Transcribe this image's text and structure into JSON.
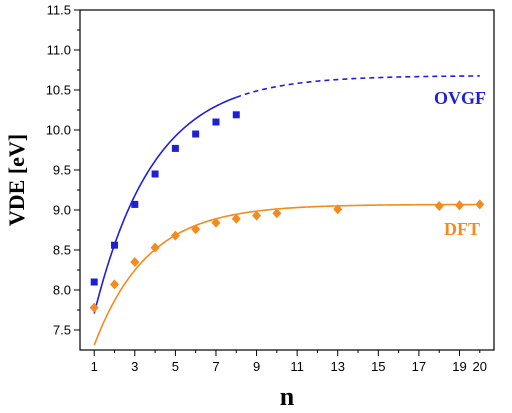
{
  "chart_data": {
    "type": "scatter",
    "title": "",
    "xlabel": "n",
    "ylabel": "VDE [eV]",
    "xlim": [
      0.3,
      20.7
    ],
    "ylim": [
      7.25,
      11.5
    ],
    "x_ticks_major": [
      1,
      3,
      5,
      7,
      9,
      11,
      13,
      15,
      17,
      19
    ],
    "x_ticks_minor": [
      2,
      4,
      6,
      8,
      10,
      12,
      14,
      16,
      18,
      20
    ],
    "x_tick_labels": [
      "1",
      "3",
      "5",
      "7",
      "9",
      "11",
      "13",
      "15",
      "17",
      "19",
      "20"
    ],
    "x_tick_label_values": [
      1,
      3,
      5,
      7,
      9,
      11,
      13,
      15,
      17,
      19,
      20
    ],
    "y_ticks": [
      7.5,
      8.0,
      8.5,
      9.0,
      9.5,
      10.0,
      10.5,
      11.0,
      11.5
    ],
    "y_tick_labels": [
      "7.5",
      "8.0",
      "8.5",
      "9.0",
      "9.5",
      "10.0",
      "10.5",
      "11.0",
      "11.5"
    ],
    "grid": false,
    "series": [
      {
        "name": "OVGF",
        "color": "#1f1fd6",
        "marker": "square",
        "x": [
          1,
          2,
          3,
          4,
          5,
          6,
          7,
          8
        ],
        "values": [
          8.1,
          8.56,
          9.07,
          9.45,
          9.77,
          9.95,
          10.1,
          10.19
        ],
        "fit": {
          "y_max": 10.68,
          "amplitude": 2.975,
          "rate": 0.342,
          "solid_until": 8,
          "dashed_until": 20,
          "line_style_extrapolated": "dashed"
        }
      },
      {
        "name": "DFT",
        "color": "#f58a1f",
        "marker": "diamond",
        "x": [
          1,
          2,
          3,
          4,
          5,
          6,
          7,
          8,
          9,
          10,
          13,
          18,
          19,
          20
        ],
        "values": [
          7.78,
          8.07,
          8.35,
          8.53,
          8.68,
          8.76,
          8.84,
          8.89,
          8.93,
          8.96,
          9.01,
          9.05,
          9.06,
          9.07
        ],
        "fit": {
          "y_max": 9.07,
          "amplitude": 1.76,
          "rate": 0.38,
          "solid_until": 20
        }
      }
    ]
  }
}
